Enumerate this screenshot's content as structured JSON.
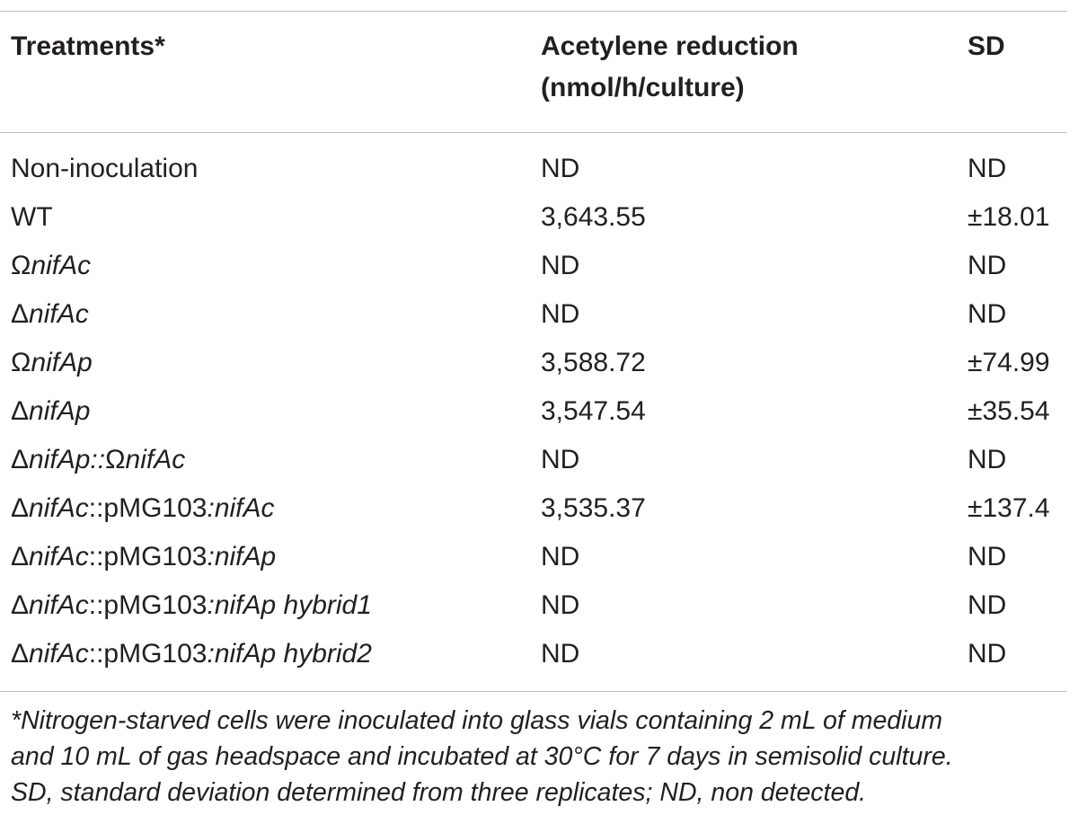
{
  "table": {
    "headers": {
      "treatments": "Treatments*",
      "acetylene_line1": "Acetylene reduction",
      "acetylene_line2": "(nmol/h/culture)",
      "sd": "SD"
    },
    "rows": [
      {
        "treatment": [
          {
            "t": "Non-inoculation",
            "i": false
          }
        ],
        "acetylene": "ND",
        "sd": "ND"
      },
      {
        "treatment": [
          {
            "t": "WT",
            "i": false
          }
        ],
        "acetylene": "3,643.55",
        "sd": "±18.01"
      },
      {
        "treatment": [
          {
            "t": "Ω",
            "i": false
          },
          {
            "t": "nifAc",
            "i": true
          }
        ],
        "acetylene": "ND",
        "sd": "ND"
      },
      {
        "treatment": [
          {
            "t": "Δ",
            "i": false
          },
          {
            "t": "nifAc",
            "i": true
          }
        ],
        "acetylene": "ND",
        "sd": "ND"
      },
      {
        "treatment": [
          {
            "t": "Ω",
            "i": false
          },
          {
            "t": "nifAp",
            "i": true
          }
        ],
        "acetylene": "3,588.72",
        "sd": "±74.99"
      },
      {
        "treatment": [
          {
            "t": "Δ",
            "i": false
          },
          {
            "t": "nifAp",
            "i": true
          }
        ],
        "acetylene": "3,547.54",
        "sd": "±35.54"
      },
      {
        "treatment": [
          {
            "t": "Δ",
            "i": false
          },
          {
            "t": "nifAp::",
            "i": true
          },
          {
            "t": "Ω",
            "i": false
          },
          {
            "t": "nifAc",
            "i": true
          }
        ],
        "acetylene": "ND",
        "sd": "ND"
      },
      {
        "treatment": [
          {
            "t": "Δ",
            "i": false
          },
          {
            "t": "nifAc",
            "i": true
          },
          {
            "t": "::pMG103",
            "i": false
          },
          {
            "t": ":nifAc",
            "i": true
          }
        ],
        "acetylene": "3,535.37",
        "sd": "±137.4"
      },
      {
        "treatment": [
          {
            "t": "Δ",
            "i": false
          },
          {
            "t": "nifAc",
            "i": true
          },
          {
            "t": "::pMG103",
            "i": false
          },
          {
            "t": ":nifAp",
            "i": true
          }
        ],
        "acetylene": "ND",
        "sd": "ND"
      },
      {
        "treatment": [
          {
            "t": "Δ",
            "i": false
          },
          {
            "t": "nifAc",
            "i": true
          },
          {
            "t": "::pMG103",
            "i": false
          },
          {
            "t": ":nifAp hybrid1",
            "i": true
          }
        ],
        "acetylene": "ND",
        "sd": "ND"
      },
      {
        "treatment": [
          {
            "t": "Δ",
            "i": false
          },
          {
            "t": "nifAc",
            "i": true
          },
          {
            "t": "::pMG103",
            "i": false
          },
          {
            "t": ":nifAp hybrid2",
            "i": true
          }
        ],
        "acetylene": "ND",
        "sd": "ND"
      }
    ]
  },
  "footnote": {
    "line1": "*Nitrogen-starved cells were inoculated into glass vials containing 2 mL of medium",
    "line2": "and 10 mL of gas headspace and incubated at 30°C for 7 days in semisolid culture.",
    "line3": "SD, standard deviation determined from three replicates; ND, non detected."
  }
}
